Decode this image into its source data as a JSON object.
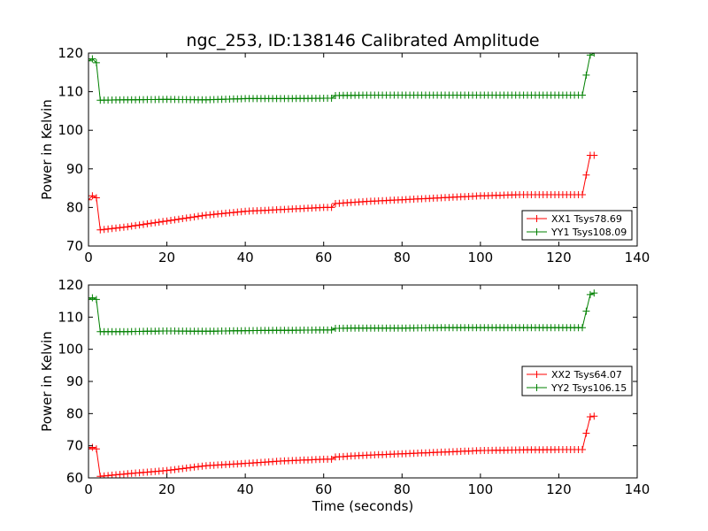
{
  "figure": {
    "title": "ngc_253, ID:138146 Calibrated Amplitude"
  },
  "chart_data": [
    {
      "type": "line",
      "title": "ngc_253, ID:138146 Calibrated Amplitude",
      "xlabel": "",
      "ylabel": "Power in Kelvin",
      "xlim": [
        0,
        140
      ],
      "ylim": [
        70,
        120
      ],
      "xticks": [
        0,
        20,
        40,
        60,
        80,
        100,
        120,
        140
      ],
      "yticks": [
        70,
        80,
        90,
        100,
        110,
        120
      ],
      "grid": false,
      "legend": "lower-right",
      "series": [
        {
          "name": "XX1 Tsys78.69",
          "color": "#ff0000",
          "marker": "+",
          "points": [
            [
              0,
              82.0
            ],
            [
              1,
              83.0
            ],
            [
              2,
              82.5
            ],
            [
              3,
              74.2
            ],
            [
              10,
              75.0
            ],
            [
              20,
              76.5
            ],
            [
              30,
              78.0
            ],
            [
              40,
              79.0
            ],
            [
              50,
              79.5
            ],
            [
              60,
              80.0
            ],
            [
              62,
              80.0
            ],
            [
              63,
              81.0
            ],
            [
              70,
              81.5
            ],
            [
              80,
              82.0
            ],
            [
              90,
              82.5
            ],
            [
              100,
              83.0
            ],
            [
              110,
              83.3
            ],
            [
              120,
              83.3
            ],
            [
              126,
              83.3
            ],
            [
              128,
              93.5
            ],
            [
              129,
              93.5
            ]
          ]
        },
        {
          "name": "YY1 Tsys108.09",
          "color": "#008000",
          "marker": "+",
          "points": [
            [
              0,
              118.0
            ],
            [
              1,
              118.5
            ],
            [
              2,
              117.5
            ],
            [
              3,
              107.8
            ],
            [
              10,
              107.9
            ],
            [
              20,
              108.0
            ],
            [
              30,
              107.9
            ],
            [
              40,
              108.2
            ],
            [
              50,
              108.2
            ],
            [
              60,
              108.3
            ],
            [
              62,
              108.3
            ],
            [
              63,
              109.0
            ],
            [
              70,
              109.1
            ],
            [
              80,
              109.1
            ],
            [
              90,
              109.1
            ],
            [
              100,
              109.1
            ],
            [
              110,
              109.1
            ],
            [
              120,
              109.1
            ],
            [
              126,
              109.1
            ],
            [
              128,
              119.5
            ],
            [
              129,
              120.0
            ]
          ]
        }
      ]
    },
    {
      "type": "line",
      "title": "",
      "xlabel": "Time (seconds)",
      "ylabel": "Power in Kelvin",
      "xlim": [
        0,
        140
      ],
      "ylim": [
        60,
        120
      ],
      "xticks": [
        0,
        20,
        40,
        60,
        80,
        100,
        120,
        140
      ],
      "yticks": [
        60,
        70,
        80,
        90,
        100,
        110,
        120
      ],
      "grid": false,
      "legend": "right",
      "series": [
        {
          "name": "XX2 Tsys64.07",
          "color": "#ff0000",
          "marker": "+",
          "points": [
            [
              0,
              69.0
            ],
            [
              1,
              69.5
            ],
            [
              2,
              69.0
            ],
            [
              3,
              60.5
            ],
            [
              10,
              61.3
            ],
            [
              20,
              62.3
            ],
            [
              30,
              63.8
            ],
            [
              40,
              64.5
            ],
            [
              50,
              65.3
            ],
            [
              60,
              65.8
            ],
            [
              62,
              65.8
            ],
            [
              63,
              66.5
            ],
            [
              70,
              67.0
            ],
            [
              80,
              67.5
            ],
            [
              90,
              68.0
            ],
            [
              100,
              68.5
            ],
            [
              110,
              68.7
            ],
            [
              120,
              68.8
            ],
            [
              126,
              68.8
            ],
            [
              128,
              79.0
            ],
            [
              129,
              79.2
            ]
          ]
        },
        {
          "name": "YY2 Tsys106.15",
          "color": "#008000",
          "marker": "+",
          "points": [
            [
              0,
              115.5
            ],
            [
              1,
              116.0
            ],
            [
              2,
              115.5
            ],
            [
              3,
              105.5
            ],
            [
              10,
              105.5
            ],
            [
              20,
              105.7
            ],
            [
              30,
              105.6
            ],
            [
              40,
              105.8
            ],
            [
              50,
              105.9
            ],
            [
              60,
              106.0
            ],
            [
              62,
              106.0
            ],
            [
              63,
              106.5
            ],
            [
              70,
              106.6
            ],
            [
              80,
              106.6
            ],
            [
              90,
              106.7
            ],
            [
              100,
              106.7
            ],
            [
              110,
              106.7
            ],
            [
              120,
              106.7
            ],
            [
              126,
              106.7
            ],
            [
              128,
              117.0
            ],
            [
              129,
              117.5
            ]
          ]
        }
      ]
    }
  ]
}
